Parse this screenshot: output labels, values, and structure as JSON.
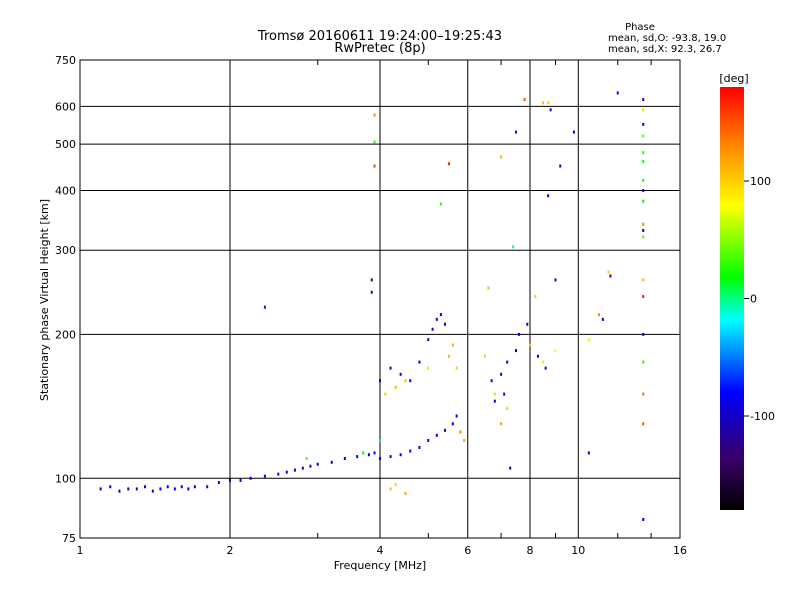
{
  "chart_data": {
    "type": "scatter",
    "title": "Tromsø 20160611 19:24:00–19:25:43",
    "subtitle": "RwPretec (8p)",
    "stats_title": "Phase",
    "stats_line1": "mean, sd,O: -93.8, 19.0",
    "stats_line2": "mean, sd,X:  92.3, 26.7",
    "xlabel": "Frequency [MHz]",
    "ylabel": "Stationary phase Virtual Height [km]",
    "xscale": "log",
    "yscale": "log",
    "xlim": [
      1,
      16
    ],
    "ylim": [
      75,
      750
    ],
    "xticks": [
      1,
      2,
      4,
      6,
      8,
      10,
      16
    ],
    "xtick_labels": [
      "1",
      "2",
      "4",
      "6",
      "8",
      "10",
      "16"
    ],
    "yticks": [
      75,
      100,
      200,
      300,
      400,
      500,
      600,
      750
    ],
    "ytick_labels": [
      "75",
      "100",
      "200",
      "300",
      "400",
      "500",
      "600",
      "750"
    ],
    "grid": true,
    "colorbar": {
      "label": "[deg]",
      "range": [
        -180,
        180
      ],
      "ticks": [
        100,
        0,
        -100
      ],
      "tick_labels": [
        "100",
        "0",
        "-100"
      ],
      "colormap": "rainbow",
      "colors": [
        "#000000",
        "#3a0066",
        "#0000ff",
        "#00ffff",
        "#00ff00",
        "#ffff00",
        "#ff8800",
        "#ff0000"
      ]
    },
    "series": [
      {
        "points": [
          [
            1.1,
            95,
            -100
          ],
          [
            1.15,
            96,
            -105
          ],
          [
            1.2,
            94,
            -98
          ],
          [
            1.25,
            95,
            -110
          ],
          [
            1.3,
            95,
            -100
          ],
          [
            1.35,
            96,
            -95
          ],
          [
            1.4,
            94,
            -108
          ],
          [
            1.45,
            95,
            -100
          ],
          [
            1.5,
            96,
            -102
          ],
          [
            1.55,
            95,
            -97
          ],
          [
            1.6,
            96,
            -105
          ],
          [
            1.65,
            95,
            -100
          ],
          [
            1.7,
            96,
            -99
          ],
          [
            1.8,
            96,
            -104
          ],
          [
            1.9,
            98,
            -100
          ],
          [
            2.0,
            99,
            -98
          ],
          [
            2.1,
            99,
            -101
          ],
          [
            2.2,
            100,
            -100
          ],
          [
            2.35,
            101,
            -103
          ],
          [
            2.5,
            102,
            -100
          ],
          [
            2.6,
            103,
            -97
          ],
          [
            2.7,
            104,
            -100
          ],
          [
            2.8,
            105,
            -99
          ],
          [
            2.9,
            106,
            -105
          ],
          [
            3.0,
            107,
            -100
          ],
          [
            3.2,
            108,
            -100
          ],
          [
            3.4,
            110,
            -98
          ],
          [
            3.6,
            111,
            -102
          ],
          [
            3.8,
            112,
            -100
          ],
          [
            3.9,
            113,
            -95
          ],
          [
            4.0,
            110,
            -100
          ],
          [
            4.2,
            111,
            -103
          ],
          [
            4.4,
            112,
            -100
          ],
          [
            4.6,
            114,
            -98
          ],
          [
            4.8,
            116,
            -100
          ],
          [
            5.0,
            120,
            -101
          ],
          [
            5.2,
            123,
            -99
          ],
          [
            5.4,
            126,
            -100
          ],
          [
            5.6,
            130,
            -97
          ],
          [
            5.7,
            135,
            -100
          ],
          [
            4.0,
            160,
            -100
          ],
          [
            4.2,
            170,
            -105
          ],
          [
            4.4,
            165,
            -95
          ],
          [
            4.6,
            160,
            -100
          ],
          [
            4.8,
            175,
            -103
          ],
          [
            5.0,
            195,
            -110
          ],
          [
            5.1,
            205,
            -112
          ],
          [
            5.2,
            215,
            -115
          ],
          [
            5.3,
            220,
            -110
          ],
          [
            5.4,
            210,
            -105
          ]
        ]
      },
      {
        "points": [
          [
            2.85,
            110,
            40
          ],
          [
            3.7,
            113,
            20
          ],
          [
            4.0,
            120,
            10
          ],
          [
            4.1,
            150,
            100
          ],
          [
            4.3,
            155,
            110
          ],
          [
            4.5,
            160,
            105
          ],
          [
            5.0,
            170,
            95
          ],
          [
            5.5,
            180,
            110
          ],
          [
            5.6,
            190,
            120
          ],
          [
            5.7,
            170,
            100
          ],
          [
            5.8,
            125,
            130
          ],
          [
            5.9,
            120,
            115
          ],
          [
            3.9,
            575,
            130
          ],
          [
            3.9,
            450,
            160
          ],
          [
            3.9,
            505,
            10
          ],
          [
            5.5,
            455,
            170
          ],
          [
            5.3,
            375,
            30
          ],
          [
            4.2,
            95,
            110
          ],
          [
            4.3,
            97,
            100
          ],
          [
            4.5,
            93,
            120
          ],
          [
            7.0,
            470,
            110
          ],
          [
            7.4,
            305,
            0
          ],
          [
            7.8,
            620,
            150
          ],
          [
            8.5,
            610,
            110
          ],
          [
            8.7,
            610,
            100
          ],
          [
            13.5,
            590,
            60
          ],
          [
            13.5,
            520,
            40
          ],
          [
            13.5,
            480,
            30
          ],
          [
            13.5,
            460,
            20
          ],
          [
            13.5,
            420,
            10
          ],
          [
            13.5,
            380,
            20
          ],
          [
            13.5,
            340,
            130
          ],
          [
            13.5,
            320,
            40
          ],
          [
            13.5,
            260,
            110
          ],
          [
            13.5,
            240,
            170
          ],
          [
            13.5,
            175,
            30
          ],
          [
            13.5,
            150,
            140
          ],
          [
            13.5,
            130,
            150
          ],
          [
            11.5,
            270,
            100
          ],
          [
            11.0,
            220,
            130
          ],
          [
            10.5,
            195,
            90
          ],
          [
            6.5,
            180,
            100
          ],
          [
            6.8,
            150,
            60
          ],
          [
            7.0,
            130,
            120
          ],
          [
            8.0,
            190,
            110
          ],
          [
            8.5,
            175,
            90
          ],
          [
            9.0,
            185,
            80
          ],
          [
            7.2,
            140,
            100
          ],
          [
            6.6,
            250,
            110
          ],
          [
            8.2,
            240,
            100
          ]
        ]
      },
      {
        "points": [
          [
            2.35,
            228,
            -90
          ],
          [
            3.85,
            260,
            -150
          ],
          [
            3.85,
            245,
            -140
          ],
          [
            7.5,
            530,
            -90
          ],
          [
            8.8,
            590,
            -100
          ],
          [
            9.2,
            450,
            -110
          ],
          [
            9.8,
            530,
            -100
          ],
          [
            12.0,
            640,
            -100
          ],
          [
            13.5,
            620,
            -120
          ],
          [
            13.5,
            550,
            -110
          ],
          [
            13.5,
            400,
            -100
          ],
          [
            13.5,
            330,
            -110
          ],
          [
            13.5,
            200,
            -100
          ],
          [
            13.5,
            82,
            -100
          ],
          [
            10.5,
            113,
            -100
          ],
          [
            7.3,
            105,
            -100
          ],
          [
            7.0,
            165,
            -100
          ],
          [
            7.2,
            175,
            -110
          ],
          [
            7.6,
            200,
            -100
          ],
          [
            7.9,
            210,
            -105
          ],
          [
            8.3,
            180,
            -100
          ],
          [
            8.6,
            170,
            -95
          ],
          [
            9.0,
            260,
            -120
          ],
          [
            8.7,
            390,
            -100
          ],
          [
            11.2,
            215,
            -110
          ],
          [
            11.6,
            265,
            -140
          ],
          [
            6.7,
            160,
            -100
          ],
          [
            6.8,
            145,
            -105
          ],
          [
            7.1,
            150,
            -100
          ],
          [
            7.5,
            185,
            -100
          ]
        ]
      }
    ]
  }
}
